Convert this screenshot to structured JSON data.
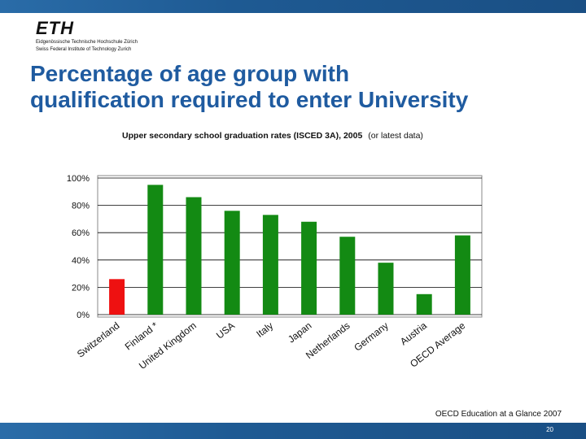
{
  "logo": {
    "word": "ETH",
    "line1": "Eidgenössische Technische Hochschule Zürich",
    "line2": "Swiss Federal Institute of Technology Zurich"
  },
  "slide": {
    "title_line1": "Percentage of age group with",
    "title_line2": "qualification required to enter University",
    "source": "OECD Education at a Glance 2007",
    "page_number": "20"
  },
  "colors": {
    "title": "#1f5ba0",
    "bar_default": "#138a13",
    "bar_highlight": "#ee1111",
    "plot_background": "#ffffff",
    "bar_top_bands": "#2a6ca8"
  },
  "chart_data": {
    "type": "bar",
    "title": "Upper secondary school graduation rates (ISCED 3A), 2005",
    "title_note": "(or latest data)",
    "categories": [
      "Switzerland",
      "Finland *",
      "United Kingdom",
      "USA",
      "Italy",
      "Japan",
      "Netherlands",
      "Germany",
      "Austria",
      "OECD Average"
    ],
    "values": [
      26,
      95,
      86,
      76,
      73,
      68,
      57,
      38,
      15,
      58
    ],
    "highlight_index": 0,
    "y_ticks": [
      "0%",
      "20%",
      "40%",
      "60%",
      "80%",
      "100%"
    ],
    "ylim": [
      0,
      100
    ],
    "grid": true,
    "xlabel": "",
    "ylabel": ""
  }
}
